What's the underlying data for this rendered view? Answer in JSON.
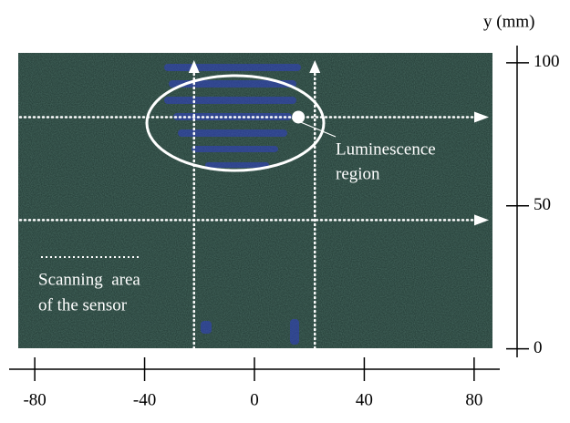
{
  "chart_data": {
    "type": "image",
    "ylabel": "y (mm)",
    "xlim": [
      -90,
      92
    ],
    "xticks": [
      -80,
      -40,
      0,
      40,
      80
    ],
    "ylim": [
      -3,
      106
    ],
    "yticks": [
      0,
      50,
      100
    ],
    "scan_x": [
      -22,
      22
    ],
    "scan_y": [
      45,
      81
    ],
    "point": {
      "x": 16,
      "y": 81
    },
    "annotations": [
      "Luminescence",
      "region",
      "Scanning  area",
      "of the sensor"
    ]
  }
}
